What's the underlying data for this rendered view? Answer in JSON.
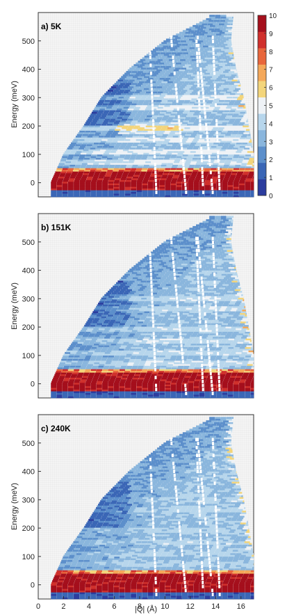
{
  "chart_data": {
    "type": "heatmap",
    "panels": [
      {
        "label": "a) 5K",
        "temperature": "5K",
        "xlim": [
          0,
          17
        ],
        "ylim": [
          -50,
          600
        ],
        "yticks": [
          0,
          100,
          200,
          300,
          400,
          500
        ],
        "ylabel": "Energy (meV)",
        "kinematic_edge_Q": [
          [
            -50,
            1.0
          ],
          [
            0,
            1.0
          ],
          [
            100,
            2.0
          ],
          [
            200,
            3.6
          ],
          [
            300,
            5.0
          ],
          [
            400,
            7.2
          ],
          [
            500,
            10.0
          ],
          [
            580,
            13.5
          ]
        ],
        "right_edge_Q": [
          [
            -50,
            17.0
          ],
          [
            100,
            17.0
          ],
          [
            200,
            16.6
          ],
          [
            300,
            16.2
          ],
          [
            400,
            15.6
          ],
          [
            500,
            15.2
          ],
          [
            590,
            15.4
          ]
        ],
        "bands_meV": [
          300,
          260,
          190,
          150,
          105,
          70
        ],
        "elastic_band_meV": [
          -10,
          50
        ],
        "colorbar": {
          "min": 0,
          "max": 10,
          "ticks": [
            0,
            1,
            2,
            3,
            4,
            5,
            6,
            7,
            8,
            9,
            10
          ]
        }
      },
      {
        "label": "b) 151K",
        "temperature": "151K",
        "xlim": [
          0,
          17
        ],
        "ylim": [
          -50,
          600
        ],
        "yticks": [
          0,
          100,
          200,
          300,
          400,
          500
        ],
        "ylabel": "Energy (meV)",
        "kinematic_edge_Q": [
          [
            -50,
            1.0
          ],
          [
            0,
            1.0
          ],
          [
            100,
            2.0
          ],
          [
            200,
            3.6
          ],
          [
            300,
            5.0
          ],
          [
            400,
            7.2
          ],
          [
            500,
            10.0
          ],
          [
            580,
            13.5
          ]
        ],
        "right_edge_Q": [
          [
            -50,
            17.0
          ],
          [
            100,
            17.0
          ],
          [
            200,
            16.6
          ],
          [
            300,
            16.2
          ],
          [
            400,
            15.6
          ],
          [
            500,
            15.2
          ],
          [
            590,
            15.4
          ]
        ],
        "bands_meV": [
          300,
          260,
          190,
          150,
          105,
          70
        ],
        "elastic_band_meV": [
          -10,
          50
        ]
      },
      {
        "label": "c) 240K",
        "temperature": "240K",
        "xlim": [
          0,
          17
        ],
        "ylim": [
          -50,
          600
        ],
        "yticks": [
          0,
          100,
          200,
          300,
          400,
          500
        ],
        "xticks": [
          0,
          2,
          4,
          6,
          8,
          10,
          12,
          14,
          16
        ],
        "ylabel": "Energy (meV)",
        "xlabel": "|Q| (Å)",
        "kinematic_edge_Q": [
          [
            -50,
            1.0
          ],
          [
            0,
            1.0
          ],
          [
            100,
            2.0
          ],
          [
            200,
            3.6
          ],
          [
            300,
            5.0
          ],
          [
            400,
            7.2
          ],
          [
            500,
            10.0
          ],
          [
            580,
            13.5
          ]
        ],
        "right_edge_Q": [
          [
            -50,
            17.0
          ],
          [
            100,
            17.0
          ],
          [
            200,
            16.6
          ],
          [
            300,
            16.2
          ],
          [
            400,
            15.6
          ],
          [
            500,
            15.2
          ],
          [
            590,
            15.4
          ]
        ],
        "bands_meV": [
          300,
          260,
          190,
          150,
          105,
          70
        ],
        "elastic_band_meV": [
          -10,
          50
        ]
      }
    ],
    "colormap": [
      "#2b3c9e",
      "#3a66b6",
      "#5c8fcb",
      "#8ab6dd",
      "#b7d6ec",
      "#eef2f6",
      "#f3d57b",
      "#f4a85a",
      "#e8663c",
      "#d0302c",
      "#a50f1c"
    ],
    "detector_gaps_Q": [
      9.2,
      11.5,
      12.9,
      13.6,
      14.2
    ]
  }
}
